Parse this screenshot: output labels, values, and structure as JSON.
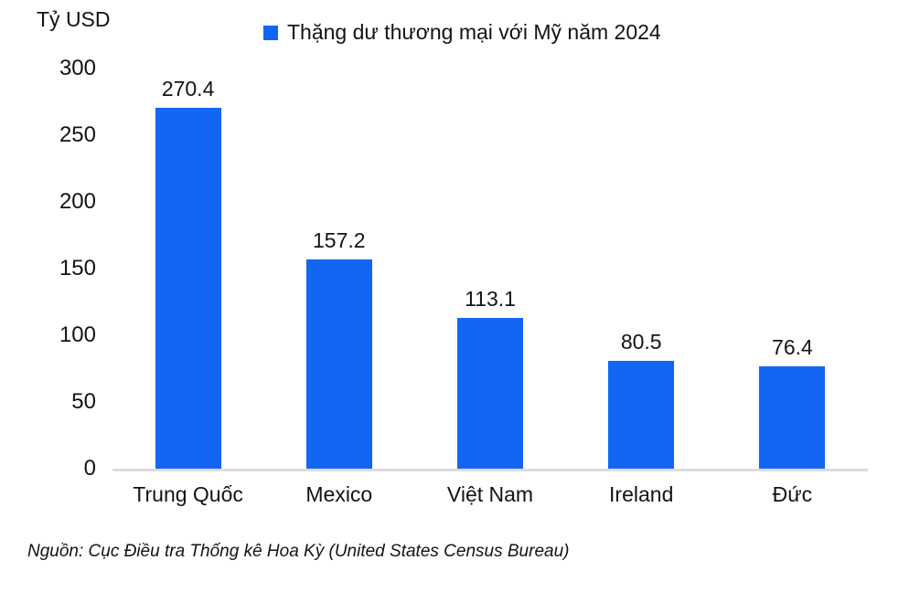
{
  "chart_data": {
    "type": "bar",
    "legend": "Thặng dư thương mại với Mỹ năm 2024",
    "unit_label": "Tỷ USD",
    "categories": [
      "Trung Quốc",
      "Mexico",
      "Việt Nam",
      "Ireland",
      "Đức"
    ],
    "values": [
      270.4,
      157.2,
      113.1,
      80.5,
      76.4
    ],
    "ylim": [
      0,
      300
    ],
    "yticks": [
      0,
      50,
      100,
      150,
      200,
      250,
      300
    ],
    "bar_color": "#1266F2",
    "axis_line_color": "#dcdcdc",
    "legend_position": "top",
    "grid": false
  },
  "source_note": "Nguồn: Cục Điều tra Thống kê Hoa Kỳ (United States Census Bureau)"
}
